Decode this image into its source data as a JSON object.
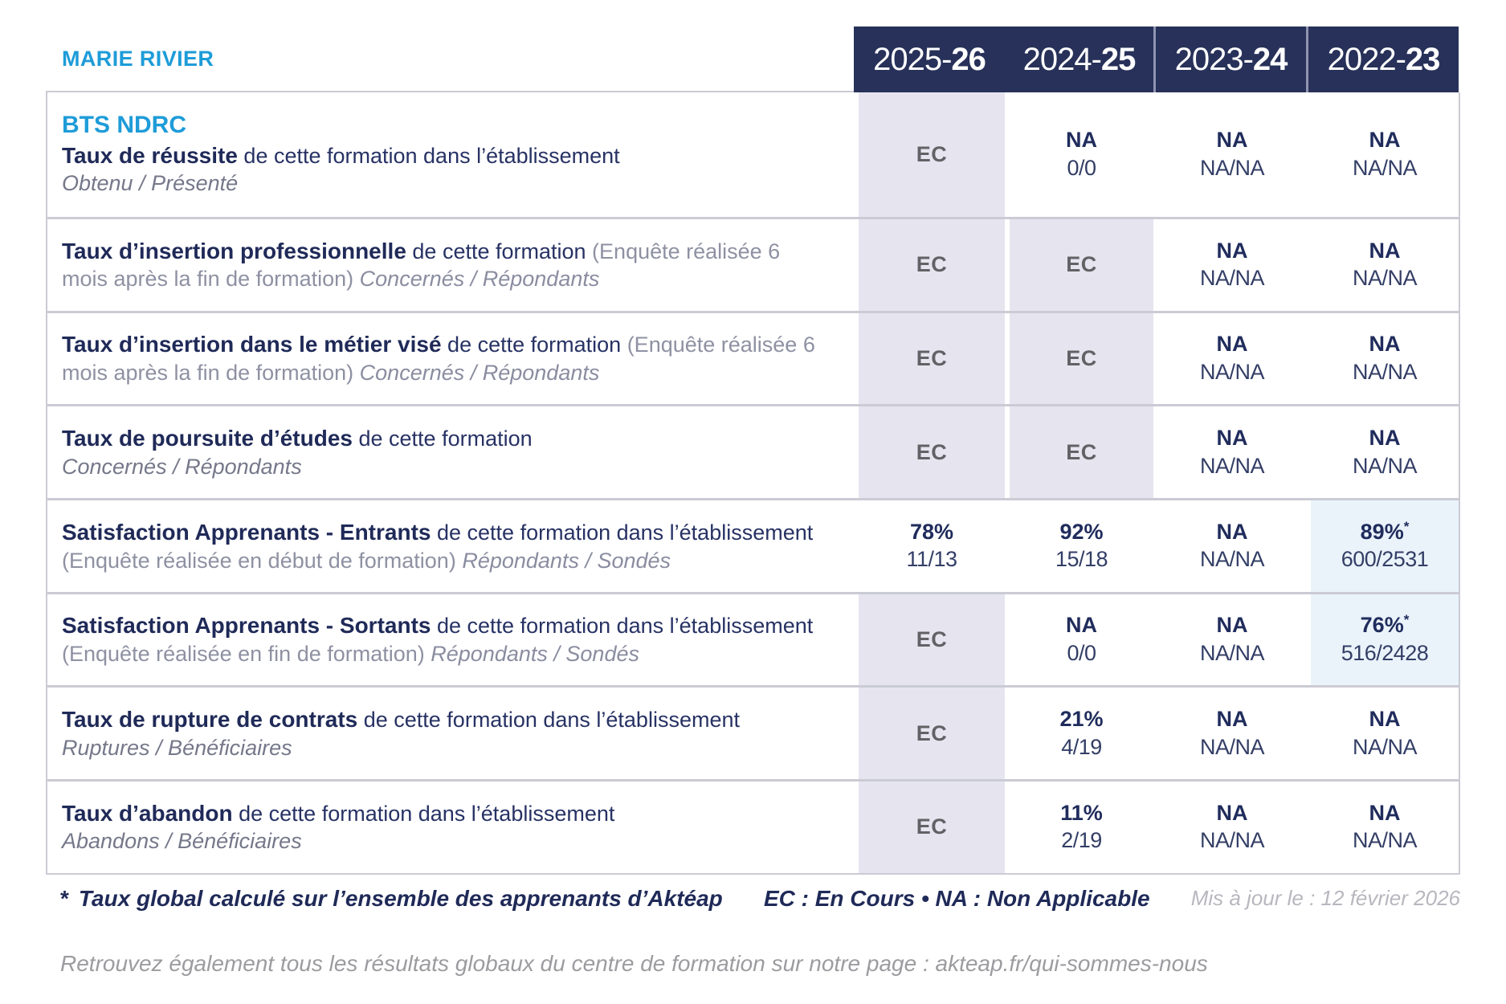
{
  "header": {
    "institution": "MARIE RIVIER",
    "years": [
      {
        "pre": "2025-",
        "bold": "26"
      },
      {
        "pre": "2024-",
        "bold": "25"
      },
      {
        "pre": "2023-",
        "bold": "24"
      },
      {
        "pre": "2022-",
        "bold": "23"
      }
    ]
  },
  "program": "BTS NDRC",
  "ec_label": "EC",
  "star": "*",
  "colors": {
    "accent_blue": "#1E9CD8",
    "header_navy": "#273159",
    "text_navy": "#1F2A58",
    "ec_cell_lavender": "#E6E5EF",
    "highlight_cell_blue": "#EAF3FA",
    "border_gray": "#CBCBD5"
  },
  "rows": [
    {
      "program": true,
      "title_bold": "Taux de réussite",
      "title_rest": "de cette formation dans l’établissement",
      "subline": "Obtenu / Présenté",
      "cells": [
        {
          "t": "ec"
        },
        {
          "t": "v",
          "v": "NA",
          "s": "0/0"
        },
        {
          "t": "v",
          "v": "NA",
          "s": "NA/NA"
        },
        {
          "t": "v",
          "v": "NA",
          "s": "NA/NA"
        }
      ]
    },
    {
      "title_bold": "Taux d’insertion professionnelle",
      "title_rest": "de cette formation",
      "note": "(Enquête réalisée 6 mois après la fin de formation)",
      "tail": "Concernés / Répondants",
      "cells": [
        {
          "t": "ec"
        },
        {
          "t": "ec"
        },
        {
          "t": "v",
          "v": "NA",
          "s": "NA/NA"
        },
        {
          "t": "v",
          "v": "NA",
          "s": "NA/NA"
        }
      ]
    },
    {
      "title_bold": "Taux d’insertion dans le métier visé",
      "title_rest": "de cette formation",
      "note": "(Enquête réalisée 6 mois après la fin de formation)",
      "tail": "Concernés / Répondants",
      "cells": [
        {
          "t": "ec"
        },
        {
          "t": "ec"
        },
        {
          "t": "v",
          "v": "NA",
          "s": "NA/NA"
        },
        {
          "t": "v",
          "v": "NA",
          "s": "NA/NA"
        }
      ]
    },
    {
      "title_bold": "Taux de poursuite d’études",
      "title_rest": "de cette formation",
      "subline": "Concernés / Répondants",
      "cells": [
        {
          "t": "ec"
        },
        {
          "t": "ec"
        },
        {
          "t": "v",
          "v": "NA",
          "s": "NA/NA"
        },
        {
          "t": "v",
          "v": "NA",
          "s": "NA/NA"
        }
      ]
    },
    {
      "title_bold": "Satisfaction Apprenants - Entrants",
      "title_rest": "de cette formation dans l’établissement",
      "note": "(Enquête réalisée en début de formation)",
      "tail": "Répondants / Sondés",
      "cells": [
        {
          "t": "v",
          "v": "78%",
          "s": "11/13"
        },
        {
          "t": "v",
          "v": "92%",
          "s": "15/18"
        },
        {
          "t": "v",
          "v": "NA",
          "s": "NA/NA"
        },
        {
          "t": "v",
          "v": "89%",
          "star": true,
          "s": "600/2531",
          "bg": "blue"
        }
      ]
    },
    {
      "title_bold": "Satisfaction Apprenants - Sortants",
      "title_rest": "de cette formation dans l’établissement",
      "note": "(Enquête réalisée en fin de formation)",
      "tail": "Répondants / Sondés",
      "cells": [
        {
          "t": "ec"
        },
        {
          "t": "v",
          "v": "NA",
          "s": "0/0"
        },
        {
          "t": "v",
          "v": "NA",
          "s": "NA/NA"
        },
        {
          "t": "v",
          "v": "76%",
          "star": true,
          "s": "516/2428",
          "bg": "blue"
        }
      ]
    },
    {
      "title_bold": "Taux de rupture de contrats",
      "title_rest": "de cette formation dans l’établissement",
      "subline": "Ruptures / Bénéficiaires",
      "cells": [
        {
          "t": "ec"
        },
        {
          "t": "v",
          "v": "21%",
          "s": "4/19"
        },
        {
          "t": "v",
          "v": "NA",
          "s": "NA/NA"
        },
        {
          "t": "v",
          "v": "NA",
          "s": "NA/NA"
        }
      ]
    },
    {
      "title_bold": "Taux d’abandon",
      "title_rest": "de cette formation dans l’établissement",
      "subline": "Abandons / Bénéficiaires",
      "cells": [
        {
          "t": "ec"
        },
        {
          "t": "v",
          "v": "11%",
          "s": "2/19"
        },
        {
          "t": "v",
          "v": "NA",
          "s": "NA/NA"
        },
        {
          "t": "v",
          "v": "NA",
          "s": "NA/NA"
        }
      ]
    }
  ],
  "footer": {
    "star_symbol": "*",
    "star_note": "Taux global calculé sur l’ensemble des apprenants d’Aktéap",
    "legend": "EC : En Cours  •  NA : Non Applicable",
    "updated": "Mis à jour le : 12 février 2026",
    "bottom_note": "Retrouvez également tous les résultats globaux du centre de formation sur notre page : akteap.fr/qui-sommes-nous"
  }
}
